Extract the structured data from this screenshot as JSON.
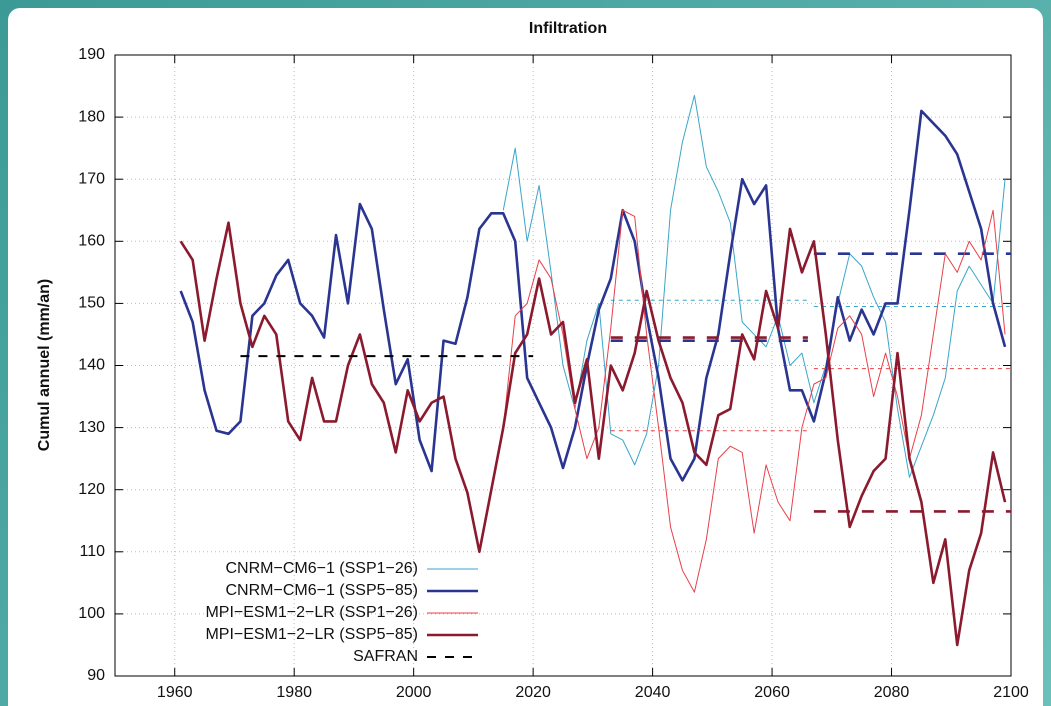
{
  "chart_data": {
    "type": "line",
    "title": "Infiltration",
    "y_label": "Cumul annuel (mm/an)",
    "xlim": [
      1950,
      2100
    ],
    "xticks": [
      1960,
      1980,
      2000,
      2020,
      2040,
      2060,
      2080,
      2100
    ],
    "ylim": [
      90,
      190
    ],
    "yticks": [
      90,
      100,
      110,
      120,
      130,
      140,
      150,
      160,
      170,
      180,
      190
    ],
    "grid": true,
    "legend": "lower left",
    "x": [
      1961,
      1963,
      1965,
      1967,
      1969,
      1971,
      1973,
      1975,
      1977,
      1979,
      1981,
      1983,
      1985,
      1987,
      1989,
      1991,
      1993,
      1995,
      1997,
      1999,
      2001,
      2003,
      2005,
      2007,
      2009,
      2011,
      2013,
      2015,
      2017,
      2019,
      2021,
      2023,
      2025,
      2027,
      2029,
      2031,
      2033,
      2035,
      2037,
      2039,
      2041,
      2043,
      2045,
      2047,
      2049,
      2051,
      2053,
      2055,
      2057,
      2059,
      2061,
      2063,
      2065,
      2067,
      2069,
      2071,
      2073,
      2075,
      2077,
      2079,
      2081,
      2083,
      2085,
      2087,
      2089,
      2091,
      2093,
      2095,
      2097,
      2099
    ],
    "series": [
      {
        "name": "CNRM−CM6−1 (SSP1−26)",
        "color": "#3aa6c8",
        "line_width": 1,
        "dash": "4,4",
        "values": [
          null,
          null,
          null,
          null,
          null,
          null,
          null,
          null,
          null,
          null,
          null,
          null,
          null,
          null,
          null,
          null,
          null,
          null,
          null,
          null,
          null,
          null,
          null,
          null,
          null,
          null,
          null,
          165,
          175,
          160,
          169,
          155,
          140,
          133,
          144,
          150,
          129,
          128,
          124,
          129,
          140,
          165,
          176,
          183.5,
          172,
          168,
          163,
          147,
          145,
          143,
          148,
          140,
          142,
          134,
          140,
          150,
          158,
          156,
          151,
          147,
          133,
          122,
          127,
          132,
          138,
          152,
          156,
          153,
          150,
          170
        ],
        "means": [
          {
            "start": 2033,
            "end": 2066,
            "value": 150.5
          },
          {
            "start": 2067,
            "end": 2100,
            "value": 149.5
          }
        ]
      },
      {
        "name": "CNRM−CM6−1 (SSP5−85)",
        "color": "#2a3591",
        "line_width": 2.6,
        "dash": "12,12",
        "values": [
          152,
          147,
          136,
          129.5,
          129,
          131,
          148,
          150,
          154.5,
          157,
          150,
          148,
          144.5,
          161,
          150,
          166,
          162,
          149,
          137,
          141,
          128,
          123,
          144,
          143.5,
          151,
          162,
          164.5,
          164.5,
          160,
          138,
          134,
          130,
          123.5,
          130,
          140,
          149,
          154,
          165,
          160,
          148,
          138,
          125,
          121.5,
          125,
          138,
          145,
          158,
          170,
          166,
          169,
          146,
          136,
          136,
          131,
          139,
          151,
          144,
          149,
          145,
          150,
          150,
          165,
          181,
          179,
          177,
          174,
          168,
          162,
          150,
          143
        ],
        "means": [
          {
            "start": 2033,
            "end": 2066,
            "value": 144
          },
          {
            "start": 2067,
            "end": 2100,
            "value": 158
          }
        ]
      },
      {
        "name": "MPI−ESM1−2−LR (SSP1−26)",
        "color": "#e8404a",
        "line_width": 1,
        "dash": "4,4",
        "values": [
          null,
          null,
          null,
          null,
          null,
          null,
          null,
          null,
          null,
          null,
          null,
          null,
          null,
          null,
          null,
          null,
          null,
          null,
          null,
          null,
          null,
          null,
          null,
          null,
          null,
          null,
          null,
          130,
          148,
          150,
          157,
          154,
          145,
          133,
          125,
          130,
          146,
          165,
          164,
          145,
          130,
          114,
          107,
          103.5,
          112,
          125,
          127,
          126,
          113,
          124,
          118,
          115,
          130,
          137,
          138,
          146,
          148,
          145,
          135,
          142,
          135,
          125,
          132,
          145,
          158,
          155,
          160,
          157,
          165,
          145
        ],
        "means": [
          {
            "start": 2033,
            "end": 2066,
            "value": 129.5
          },
          {
            "start": 2067,
            "end": 2100,
            "value": 139.5
          }
        ]
      },
      {
        "name": "MPI−ESM1−2−LR (SSP5−85)",
        "color": "#8b1a2e",
        "line_width": 2.6,
        "dash": "12,12",
        "values": [
          160,
          157,
          144,
          154,
          163,
          150,
          143,
          148,
          145,
          131,
          128,
          138,
          131,
          131,
          140,
          145,
          137,
          134,
          126,
          136,
          131,
          134,
          135,
          125,
          119.5,
          110,
          120,
          130,
          142,
          145,
          154,
          145,
          147,
          134,
          141,
          125,
          140,
          136,
          142,
          152,
          144,
          138,
          134,
          126,
          124,
          132,
          133,
          145,
          141,
          152,
          146,
          162,
          155,
          160,
          145,
          128,
          114,
          119,
          123,
          125,
          142,
          125,
          118,
          105,
          112,
          95,
          107,
          113,
          126,
          118
        ],
        "means": [
          {
            "start": 2033,
            "end": 2066,
            "value": 144.5
          },
          {
            "start": 2067,
            "end": 2100,
            "value": 116.5
          }
        ]
      },
      {
        "name": "SAFRAN",
        "color": "#000000",
        "line_width": 2,
        "dash": "9,9",
        "means": [
          {
            "start": 1971,
            "end": 2020,
            "value": 141.5
          }
        ]
      }
    ]
  }
}
